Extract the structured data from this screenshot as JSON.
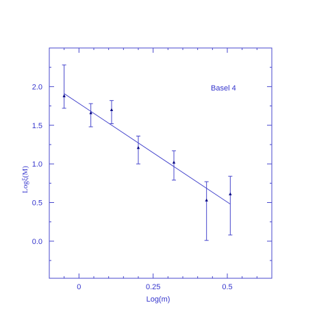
{
  "chart_data": {
    "type": "scatter",
    "annotation": "Basel 4",
    "xlabel": "Log(m)",
    "ylabel": "Logξ(M)",
    "xlim": [
      -0.1,
      0.65
    ],
    "ylim": [
      -0.48,
      2.5
    ],
    "xticks": [
      0,
      0.25,
      0.5
    ],
    "xtick_labels": [
      "0",
      "0.25",
      "0.5"
    ],
    "yticks": [
      0.0,
      0.5,
      1.0,
      1.5,
      2.0
    ],
    "ytick_labels": [
      "0.0",
      "0.5",
      "1.0",
      "1.5",
      "2.0"
    ],
    "grid": false,
    "colors": {
      "axis": "#4444cc",
      "marker": "#000080",
      "text": "#3333cc"
    },
    "series": [
      {
        "x": [
          -0.05,
          0.04,
          0.11,
          0.2,
          0.32,
          0.43,
          0.51
        ],
        "y": [
          1.88,
          1.66,
          1.7,
          1.21,
          1.02,
          0.53,
          0.61
        ],
        "yerr_low": [
          1.72,
          1.48,
          1.52,
          1.0,
          0.79,
          0.01,
          0.08
        ],
        "yerr_high": [
          2.28,
          1.78,
          1.82,
          1.36,
          1.17,
          0.77,
          0.84
        ]
      }
    ],
    "fit_line": {
      "x": [
        -0.05,
        0.51
      ],
      "y": [
        1.91,
        0.48
      ]
    }
  }
}
